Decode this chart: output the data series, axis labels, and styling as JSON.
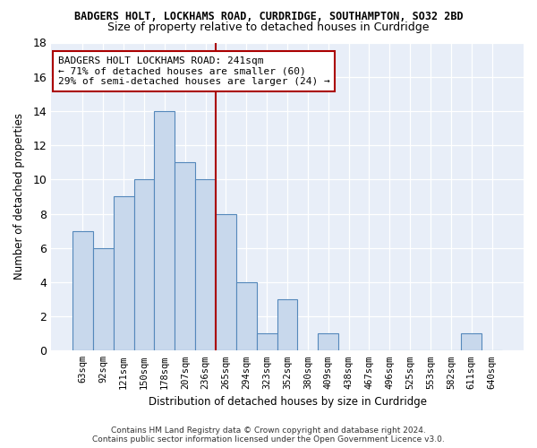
{
  "title": "BADGERS HOLT, LOCKHAMS ROAD, CURDRIDGE, SOUTHAMPTON, SO32 2BD",
  "subtitle": "Size of property relative to detached houses in Curdridge",
  "xlabel": "Distribution of detached houses by size in Curdridge",
  "ylabel": "Number of detached properties",
  "bar_color": "#c8d8ec",
  "bar_edge_color": "#5588bb",
  "categories": [
    "63sqm",
    "92sqm",
    "121sqm",
    "150sqm",
    "178sqm",
    "207sqm",
    "236sqm",
    "265sqm",
    "294sqm",
    "323sqm",
    "352sqm",
    "380sqm",
    "409sqm",
    "438sqm",
    "467sqm",
    "496sqm",
    "525sqm",
    "553sqm",
    "582sqm",
    "611sqm",
    "640sqm"
  ],
  "values": [
    7,
    6,
    9,
    10,
    14,
    11,
    10,
    8,
    4,
    1,
    3,
    0,
    1,
    0,
    0,
    0,
    0,
    0,
    0,
    1,
    0
  ],
  "ylim": [
    0,
    18
  ],
  "yticks": [
    0,
    2,
    4,
    6,
    8,
    10,
    12,
    14,
    16,
    18
  ],
  "vline_x": 6.5,
  "vline_color": "#aa0000",
  "annotation_text": "BADGERS HOLT LOCKHAMS ROAD: 241sqm\n← 71% of detached houses are smaller (60)\n29% of semi-detached houses are larger (24) →",
  "annotation_box_color": "#ffffff",
  "annotation_box_edge_color": "#aa0000",
  "footer_line1": "Contains HM Land Registry data © Crown copyright and database right 2024.",
  "footer_line2": "Contains public sector information licensed under the Open Government Licence v3.0.",
  "background_color": "#e8eef8"
}
